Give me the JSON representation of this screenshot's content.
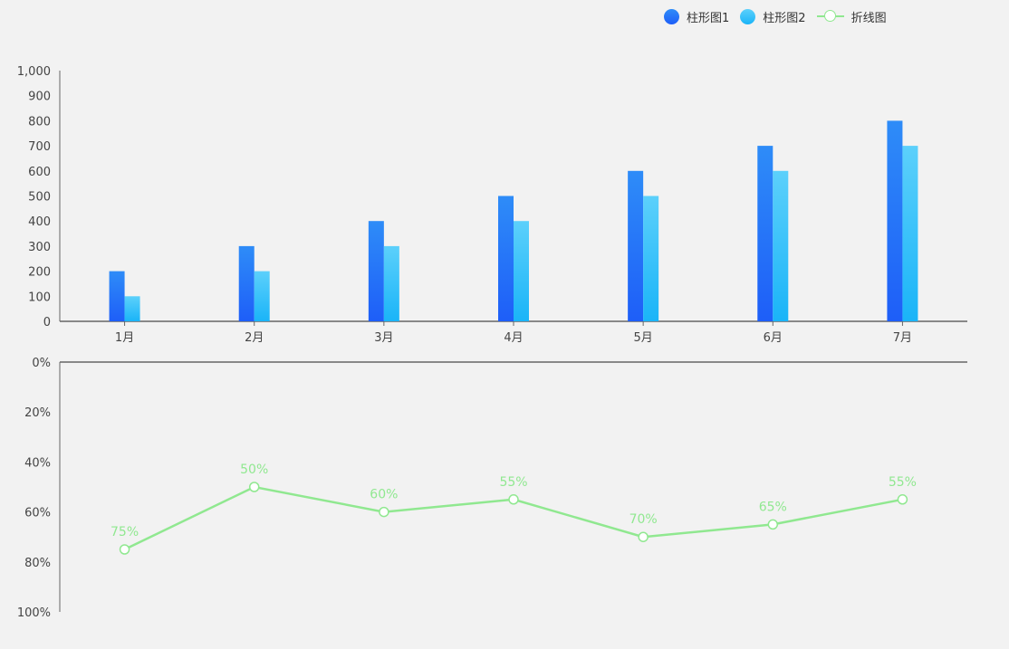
{
  "legend": {
    "items": [
      {
        "label": "柱形图1",
        "color": "#2a7cf6",
        "shape": "circle"
      },
      {
        "label": "柱形图2",
        "color": "#45c6f6",
        "shape": "circle"
      },
      {
        "label": "折线图",
        "color": "#90e890",
        "shape": "line-with-hollow-marker"
      }
    ]
  },
  "chart_data": [
    {
      "type": "bar",
      "categories": [
        "1月",
        "2月",
        "3月",
        "4月",
        "5月",
        "6月",
        "7月"
      ],
      "series": [
        {
          "name": "柱形图1",
          "values": [
            200,
            300,
            400,
            500,
            600,
            700,
            800
          ],
          "color_top": "#2e8cf8",
          "color_bottom": "#1e5ef8"
        },
        {
          "name": "柱形图2",
          "values": [
            100,
            200,
            300,
            400,
            500,
            600,
            700
          ],
          "color_top": "#5cd0fb",
          "color_bottom": "#1ab4f8"
        }
      ],
      "yticks": [
        "0",
        "100",
        "200",
        "300",
        "400",
        "500",
        "600",
        "700",
        "800",
        "900",
        "1,000"
      ],
      "ylim": [
        0,
        1000
      ],
      "grid": false
    },
    {
      "type": "line",
      "categories": [
        "1月",
        "2月",
        "3月",
        "4月",
        "5月",
        "6月",
        "7月"
      ],
      "series": [
        {
          "name": "折线图",
          "values": [
            75,
            50,
            60,
            55,
            70,
            65,
            55
          ],
          "labels": [
            "75%",
            "50%",
            "60%",
            "55%",
            "70%",
            "65%",
            "55%"
          ],
          "color": "#90e890"
        }
      ],
      "yticks": [
        "0%",
        "20%",
        "40%",
        "60%",
        "80%",
        "100%"
      ],
      "ylim": [
        0,
        100
      ],
      "y_inverted": true,
      "grid": false
    }
  ]
}
